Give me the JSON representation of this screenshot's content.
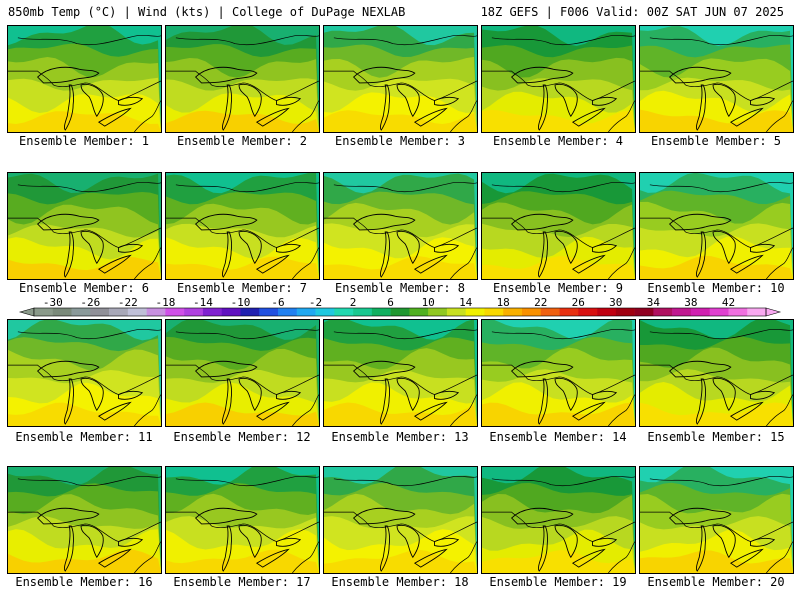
{
  "header": {
    "left_title": "850mb Temp (°C) | Wind (kts) | College of DuPage NEXLAB",
    "right_title": "18Z GEFS | F006 Valid: 00Z SAT JUN 07 2025"
  },
  "members": [
    {
      "label": "Ensemble Member: 1",
      "style": 0
    },
    {
      "label": "Ensemble Member: 2",
      "style": 1
    },
    {
      "label": "Ensemble Member: 3",
      "style": 2
    },
    {
      "label": "Ensemble Member: 4",
      "style": 3
    },
    {
      "label": "Ensemble Member: 5",
      "style": 4
    },
    {
      "label": "Ensemble Member: 6",
      "style": 1
    },
    {
      "label": "Ensemble Member: 7",
      "style": 0
    },
    {
      "label": "Ensemble Member: 8",
      "style": 2
    },
    {
      "label": "Ensemble Member: 9",
      "style": 3
    },
    {
      "label": "Ensemble Member: 10",
      "style": 4
    },
    {
      "label": "Ensemble Member: 11",
      "style": 2
    },
    {
      "label": "Ensemble Member: 12",
      "style": 1
    },
    {
      "label": "Ensemble Member: 13",
      "style": 0
    },
    {
      "label": "Ensemble Member: 14",
      "style": 4
    },
    {
      "label": "Ensemble Member: 15",
      "style": 3
    },
    {
      "label": "Ensemble Member: 16",
      "style": 1
    },
    {
      "label": "Ensemble Member: 17",
      "style": 0
    },
    {
      "label": "Ensemble Member: 18",
      "style": 2
    },
    {
      "label": "Ensemble Member: 19",
      "style": 3
    },
    {
      "label": "Ensemble Member: 20",
      "style": 4
    }
  ],
  "colorbar": {
    "labels": [
      "-30",
      "-26",
      "-22",
      "-18",
      "-14",
      "-10",
      "-6",
      "-2",
      "2",
      "6",
      "10",
      "14",
      "18",
      "22",
      "26",
      "30",
      "34",
      "38",
      "42"
    ],
    "colors": [
      "#8a9a8a",
      "#7a8a7a",
      "#8a9a9a",
      "#909098",
      "#a8a8b8",
      "#c0c0d8",
      "#c890e0",
      "#d050e8",
      "#b040e0",
      "#8020d0",
      "#6010c0",
      "#2020b0",
      "#2050e0",
      "#2080f0",
      "#20a8f0",
      "#20c8e0",
      "#20d8b0",
      "#18c890",
      "#10b060",
      "#209830",
      "#50b020",
      "#90c820",
      "#c8e020",
      "#f0f000",
      "#f8d800",
      "#f8b000",
      "#f89000",
      "#f06010",
      "#e83010",
      "#d81010",
      "#c00010",
      "#a00010",
      "#900020",
      "#b01060",
      "#c01890",
      "#d020b0",
      "#e040d0",
      "#f070e0",
      "#f8a8f0"
    ]
  }
}
